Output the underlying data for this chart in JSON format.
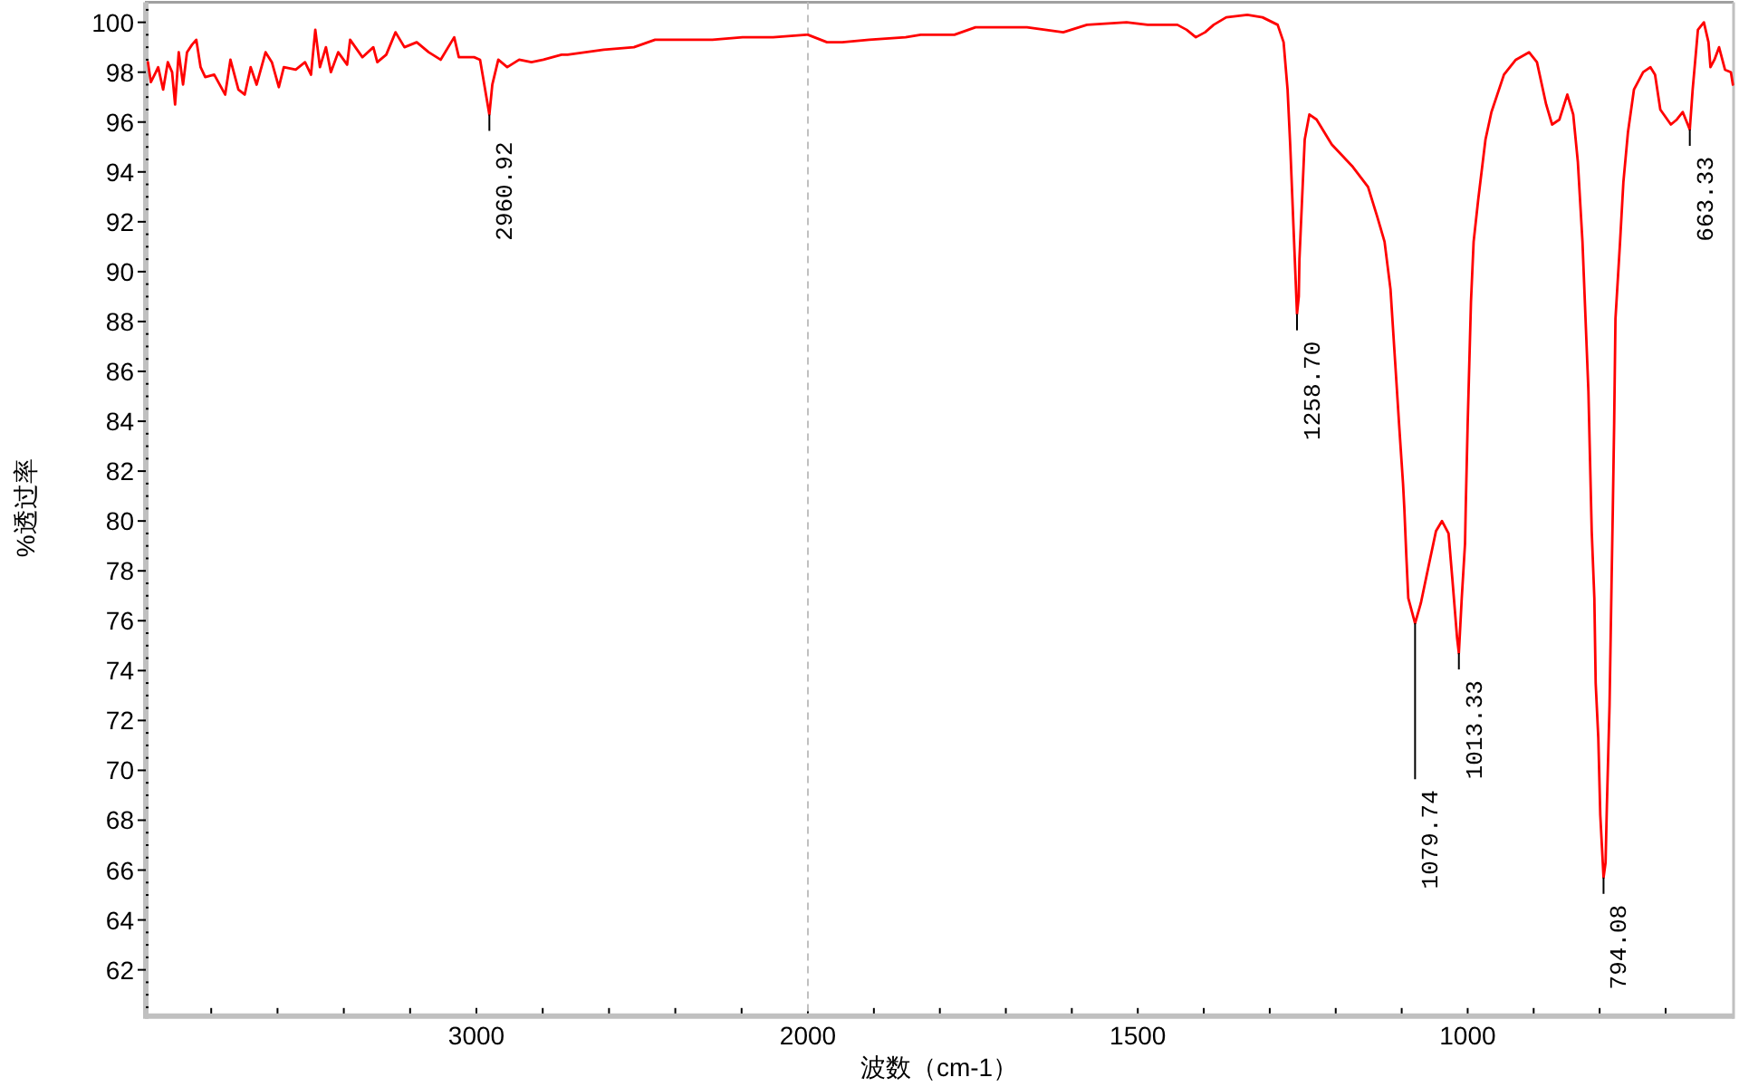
{
  "chart_data": [
    {
      "type": "line",
      "ylabel": "%透过率",
      "xlim": [
        4000,
        2000
      ],
      "ylim": [
        60.25,
        100.8
      ],
      "xticks": [
        {
          "value": 3800,
          "label": null
        },
        {
          "value": 3600,
          "label": null
        },
        {
          "value": 3400,
          "label": null
        },
        {
          "value": 3200,
          "label": null
        },
        3000,
        {
          "value": 2800,
          "label": null
        },
        {
          "value": 2600,
          "label": null
        },
        {
          "value": 2400,
          "label": null
        },
        {
          "value": 2200,
          "label": null
        },
        2000
      ],
      "yticks": [
        {
          "value": 60.5,
          "label": null
        },
        {
          "value": 61,
          "label": null
        },
        {
          "value": 61.5,
          "label": null
        },
        62,
        {
          "value": 62.5,
          "label": null
        },
        {
          "value": 63,
          "label": null
        },
        {
          "value": 63.5,
          "label": null
        },
        64,
        {
          "value": 64.5,
          "label": null
        },
        {
          "value": 65,
          "label": null
        },
        {
          "value": 65.5,
          "label": null
        },
        66,
        {
          "value": 66.5,
          "label": null
        },
        {
          "value": 67,
          "label": null
        },
        {
          "value": 67.5,
          "label": null
        },
        68,
        {
          "value": 68.5,
          "label": null
        },
        {
          "value": 69,
          "label": null
        },
        {
          "value": 69.5,
          "label": null
        },
        70,
        {
          "value": 70.5,
          "label": null
        },
        {
          "value": 71,
          "label": null
        },
        {
          "value": 71.5,
          "label": null
        },
        72,
        {
          "value": 72.5,
          "label": null
        },
        {
          "value": 73,
          "label": null
        },
        {
          "value": 73.5,
          "label": null
        },
        74,
        {
          "value": 74.5,
          "label": null
        },
        {
          "value": 75,
          "label": null
        },
        {
          "value": 75.5,
          "label": null
        },
        76,
        {
          "value": 76.5,
          "label": null
        },
        {
          "value": 77,
          "label": null
        },
        {
          "value": 77.5,
          "label": null
        },
        78,
        {
          "value": 78.5,
          "label": null
        },
        {
          "value": 79,
          "label": null
        },
        {
          "value": 79.5,
          "label": null
        },
        80,
        {
          "value": 80.5,
          "label": null
        },
        {
          "value": 81,
          "label": null
        },
        {
          "value": 81.5,
          "label": null
        },
        82,
        {
          "value": 82.5,
          "label": null
        },
        {
          "value": 83,
          "label": null
        },
        {
          "value": 83.5,
          "label": null
        },
        84,
        {
          "value": 84.5,
          "label": null
        },
        {
          "value": 85,
          "label": null
        },
        {
          "value": 85.5,
          "label": null
        },
        86,
        {
          "value": 86.5,
          "label": null
        },
        {
          "value": 87,
          "label": null
        },
        {
          "value": 87.5,
          "label": null
        },
        88,
        {
          "value": 88.5,
          "label": null
        },
        {
          "value": 89,
          "label": null
        },
        {
          "value": 89.5,
          "label": null
        },
        90,
        {
          "value": 90.5,
          "label": null
        },
        {
          "value": 91,
          "label": null
        },
        {
          "value": 91.5,
          "label": null
        },
        92,
        {
          "value": 92.5,
          "label": null
        },
        {
          "value": 93,
          "label": null
        },
        {
          "value": 93.5,
          "label": null
        },
        94,
        {
          "value": 94.5,
          "label": null
        },
        {
          "value": 95,
          "label": null
        },
        {
          "value": 95.5,
          "label": null
        },
        96,
        {
          "value": 96.5,
          "label": null
        },
        {
          "value": 97,
          "label": null
        },
        {
          "value": 97.5,
          "label": null
        },
        98,
        {
          "value": 98.5,
          "label": null
        },
        {
          "value": 99,
          "label": null
        },
        {
          "value": 99.5,
          "label": null
        },
        100,
        {
          "value": 100.5,
          "label": null
        }
      ],
      "series": [
        {
          "color": "#ff0000",
          "x": [
            3991,
            3982,
            3967,
            3960,
            3945,
            3931,
            3918,
            3909,
            3898,
            3885,
            3873,
            3858,
            3845,
            3832,
            3818,
            3791,
            3758,
            3742,
            3718,
            3699,
            3681,
            3663,
            3636,
            3617,
            3596,
            3581,
            3545,
            3517,
            3499,
            3486,
            3472,
            3454,
            3439,
            3417,
            3390,
            3381,
            3344,
            3311,
            3299,
            3272,
            3244,
            3217,
            3180,
            3144,
            3108,
            3067,
            3053,
            3007,
            2989,
            2980,
            2960.92,
            2952,
            2934,
            2907,
            2871,
            2834,
            2798,
            2743,
            2725,
            2616,
            2525,
            2461,
            2379,
            2288,
            2197,
            2105,
            2005
          ],
          "values": [
            98.4,
            97.6,
            98.0,
            98.2,
            97.3,
            98.4,
            98.0,
            96.7,
            98.8,
            97.5,
            98.8,
            99.1,
            99.3,
            98.2,
            97.8,
            97.9,
            97.1,
            98.5,
            97.3,
            97.1,
            98.2,
            97.5,
            98.8,
            98.4,
            97.4,
            98.2,
            98.1,
            98.4,
            97.9,
            99.7,
            98.2,
            99.0,
            98.0,
            98.8,
            98.3,
            99.3,
            98.6,
            99.0,
            98.4,
            98.7,
            99.6,
            99.0,
            99.2,
            98.8,
            98.5,
            99.4,
            98.6,
            98.6,
            98.5,
            97.8,
            96.3,
            97.5,
            98.5,
            98.2,
            98.5,
            98.4,
            98.5,
            98.7,
            98.7,
            98.9,
            99.0,
            99.3,
            99.3,
            99.3,
            99.4,
            99.4,
            99.5
          ]
        }
      ],
      "annotations": [
        {
          "text": "2960.92",
          "x": 2960.92,
          "y": 96.3
        }
      ]
    },
    {
      "type": "line",
      "xlabel": "波数（cm-1）",
      "xlim": [
        2000,
        597
      ],
      "ylim": [
        60.25,
        100.8
      ],
      "tick_labels": "x",
      "xticks": [
        {
          "value": 1900,
          "label": null
        },
        {
          "value": 1800,
          "label": null
        },
        {
          "value": 1700,
          "label": null
        },
        {
          "value": 1600,
          "label": null
        },
        1500,
        {
          "value": 1400,
          "label": null
        },
        {
          "value": 1300,
          "label": null
        },
        {
          "value": 1200,
          "label": null
        },
        {
          "value": 1100,
          "label": null
        },
        1000,
        {
          "value": 900,
          "label": null
        },
        {
          "value": 800,
          "label": null
        },
        {
          "value": 700,
          "label": null
        }
      ],
      "series": [
        {
          "color": "#ff0000",
          "x": [
            2000,
            1971,
            1948,
            1907,
            1852,
            1829,
            1778,
            1746,
            1705,
            1668,
            1613,
            1577,
            1517,
            1485,
            1440,
            1426,
            1412,
            1398,
            1385,
            1366,
            1334,
            1311,
            1288,
            1279,
            1273,
            1269,
            1266,
            1258.7,
            1256,
            1255,
            1251,
            1247,
            1240,
            1229,
            1206,
            1174,
            1151,
            1137,
            1126,
            1117,
            1110,
            1104,
            1098,
            1096,
            1093,
            1090,
            1079.74,
            1071,
            1060,
            1048,
            1039,
            1029,
            1023,
            1016,
            1013.33,
            1009,
            1004,
            1003,
            1000,
            995,
            991,
            984,
            973,
            964,
            945,
            927,
            907,
            895,
            881,
            872,
            861,
            849,
            840,
            833,
            826,
            817,
            812,
            808,
            806,
            802,
            799,
            794.08,
            791,
            789,
            785,
            782,
            780,
            778,
            776,
            769,
            764,
            757,
            748,
            734,
            723,
            716,
            708,
            692,
            683,
            674,
            663.33,
            659,
            651,
            642,
            635,
            632,
            626,
            619,
            610,
            601,
            598
          ],
          "values": [
            99.5,
            99.2,
            99.2,
            99.3,
            99.4,
            99.5,
            99.5,
            99.8,
            99.8,
            99.8,
            99.6,
            99.9,
            100.0,
            99.9,
            99.9,
            99.7,
            99.4,
            99.6,
            99.9,
            100.2,
            100.3,
            100.2,
            99.9,
            99.2,
            97.3,
            95.1,
            93.1,
            88.3,
            89.0,
            90.5,
            92.9,
            95.3,
            96.3,
            96.1,
            95.1,
            94.2,
            93.4,
            92.2,
            91.2,
            89.3,
            86.4,
            83.9,
            81.5,
            80.5,
            78.6,
            76.9,
            75.9,
            76.7,
            78.1,
            79.6,
            80.0,
            79.5,
            77.6,
            75.3,
            74.7,
            76.9,
            79.1,
            80.5,
            83.9,
            88.8,
            91.2,
            92.9,
            95.3,
            96.4,
            97.9,
            98.5,
            98.8,
            98.4,
            96.7,
            95.9,
            96.1,
            97.1,
            96.3,
            94.4,
            91.2,
            85.2,
            79.6,
            76.9,
            73.5,
            71.3,
            68.2,
            65.7,
            66.3,
            68.6,
            72.6,
            77.4,
            80.5,
            83.9,
            88.1,
            91.2,
            93.6,
            95.6,
            97.3,
            98.0,
            98.2,
            97.9,
            96.5,
            95.9,
            96.1,
            96.4,
            95.7,
            97.3,
            99.7,
            100.0,
            99.2,
            98.2,
            98.5,
            99.0,
            98.1,
            98.0,
            97.5
          ]
        }
      ],
      "ref_lines": [
        {
          "axis": "x",
          "value": 2000,
          "color": "#c0c0c0",
          "line_style": "dashed"
        }
      ],
      "annotations": [
        {
          "text": "1258.70",
          "x": 1258.7,
          "y": 88.3
        },
        {
          "text": "1079.74",
          "x": 1079.74,
          "y": 75.9
        },
        {
          "text": "1013.33",
          "x": 1013.33,
          "y": 74.7
        },
        {
          "text": "794.08",
          "x": 794.08,
          "y": 65.7
        },
        {
          "text": "663.33",
          "x": 663.33,
          "y": 95.7
        }
      ]
    }
  ]
}
